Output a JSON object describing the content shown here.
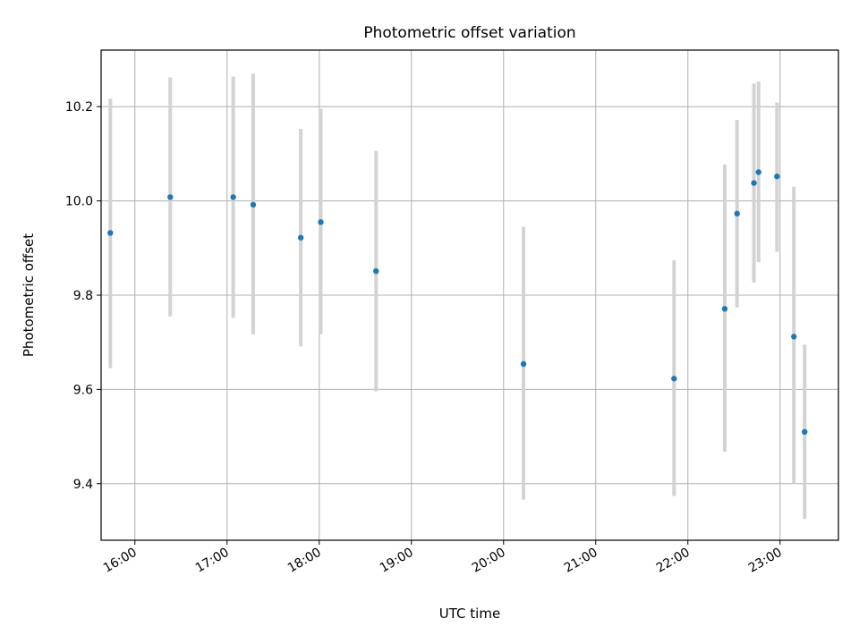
{
  "chart_data": {
    "type": "scatter",
    "title": "Photometric offset variation",
    "xlabel": "UTC time",
    "ylabel": "Photometric offset",
    "x_ticks": [
      "16:00",
      "17:00",
      "18:00",
      "19:00",
      "20:00",
      "21:00",
      "22:00",
      "23:00"
    ],
    "y_ticks": [
      9.4,
      9.6,
      9.8,
      10.0,
      10.2
    ],
    "y_tick_labels": [
      "9.4",
      "9.6",
      "9.8",
      "10.0",
      "10.2"
    ],
    "xlim": [
      "15:38",
      "23:38"
    ],
    "ylim": [
      9.28,
      10.32
    ],
    "grid": true,
    "marker_color": "#1f77b4",
    "errorbar_color": "#d3d3d3",
    "points": [
      {
        "x": "15:44",
        "y": 9.932,
        "ylow": 9.645,
        "yhigh": 10.217
      },
      {
        "x": "16:23",
        "y": 10.008,
        "ylow": 9.755,
        "yhigh": 10.262
      },
      {
        "x": "17:04",
        "y": 10.008,
        "ylow": 9.752,
        "yhigh": 10.264
      },
      {
        "x": "17:17",
        "y": 9.992,
        "ylow": 9.717,
        "yhigh": 10.27
      },
      {
        "x": "17:48",
        "y": 9.922,
        "ylow": 9.691,
        "yhigh": 10.153
      },
      {
        "x": "18:01",
        "y": 9.955,
        "ylow": 9.717,
        "yhigh": 10.196
      },
      {
        "x": "18:37",
        "y": 9.851,
        "ylow": 9.596,
        "yhigh": 10.106
      },
      {
        "x": "20:13",
        "y": 9.654,
        "ylow": 9.366,
        "yhigh": 9.945
      },
      {
        "x": "21:51",
        "y": 9.623,
        "ylow": 9.374,
        "yhigh": 9.874
      },
      {
        "x": "22:24",
        "y": 9.771,
        "ylow": 9.468,
        "yhigh": 10.077
      },
      {
        "x": "22:32",
        "y": 9.973,
        "ylow": 9.774,
        "yhigh": 10.172
      },
      {
        "x": "22:43",
        "y": 10.038,
        "ylow": 9.827,
        "yhigh": 10.249
      },
      {
        "x": "22:46",
        "y": 10.061,
        "ylow": 9.87,
        "yhigh": 10.253
      },
      {
        "x": "22:58",
        "y": 10.052,
        "ylow": 9.892,
        "yhigh": 10.209
      },
      {
        "x": "23:09",
        "y": 9.712,
        "ylow": 9.4,
        "yhigh": 10.03
      },
      {
        "x": "23:16",
        "y": 9.51,
        "ylow": 9.325,
        "yhigh": 9.695
      }
    ]
  }
}
